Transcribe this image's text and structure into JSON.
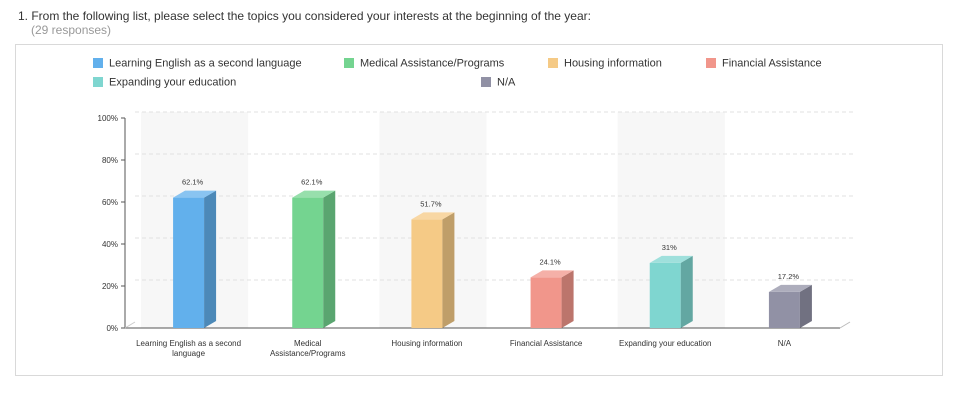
{
  "question": {
    "text": "1. From the following list, please select the topics you considered your interests at the beginning of the year:",
    "responses": "(29 responses)"
  },
  "chart_data": {
    "type": "bar",
    "categories": [
      "Learning English as a second language",
      "Medical Assistance/Programs",
      "Housing information",
      "Financial Assistance",
      "Expanding your education",
      "N/A"
    ],
    "category_lines": [
      [
        "Learning English as a second",
        "language"
      ],
      [
        "Medical",
        "Assistance/Programs"
      ],
      [
        "Housing information"
      ],
      [
        "Financial Assistance"
      ],
      [
        "Expanding your education"
      ],
      [
        "N/A"
      ]
    ],
    "values": [
      62.1,
      62.1,
      51.7,
      24.1,
      31,
      17.2
    ],
    "data_labels": [
      "62.1%",
      "62.1%",
      "51.7%",
      "24.1%",
      "31%",
      "17.2%"
    ],
    "legend": [
      "Learning English as a second language",
      "Medical Assistance/Programs",
      "Housing information",
      "Financial Assistance",
      "Expanding your education",
      "N/A"
    ],
    "legend_position": "top",
    "colors": [
      "#62b0ec",
      "#74d490",
      "#f5ca86",
      "#f1968b",
      "#7fd6d0",
      "#9191a5"
    ],
    "ylim": [
      0,
      100
    ],
    "yticks": [
      0,
      20,
      40,
      60,
      80,
      100
    ],
    "ytick_labels": [
      "0%",
      "20%",
      "40%",
      "60%",
      "80%",
      "100%"
    ],
    "grid": true
  }
}
